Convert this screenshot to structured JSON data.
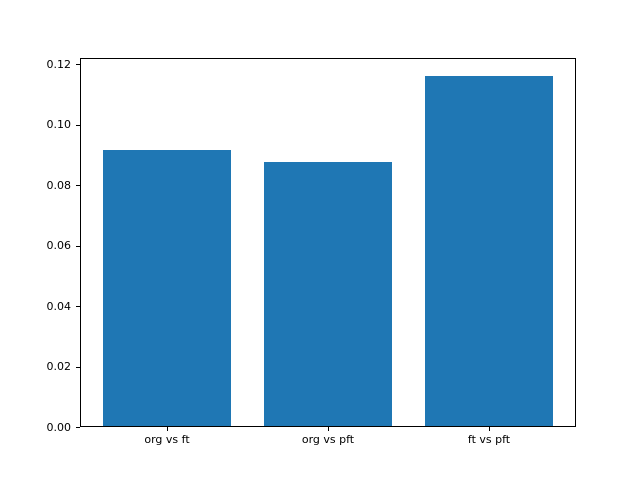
{
  "chart_data": {
    "type": "bar",
    "categories": [
      "org vs ft",
      "org vs pft",
      "ft vs pft"
    ],
    "values": [
      0.0917,
      0.0877,
      0.1162
    ],
    "title": "",
    "xlabel": "",
    "ylabel": "",
    "ylim": [
      0,
      0.122
    ],
    "yticks": [
      0.0,
      0.02,
      0.04,
      0.06,
      0.08,
      0.1,
      0.12
    ],
    "ytick_labels": [
      "0.00",
      "0.02",
      "0.04",
      "0.06",
      "0.08",
      "0.10",
      "0.12"
    ],
    "bar_width_fraction": 0.8,
    "bar_color": "#1f77b4",
    "axis_color": "#000000",
    "background_color": "#ffffff",
    "grid": false,
    "legend_position": "none"
  }
}
